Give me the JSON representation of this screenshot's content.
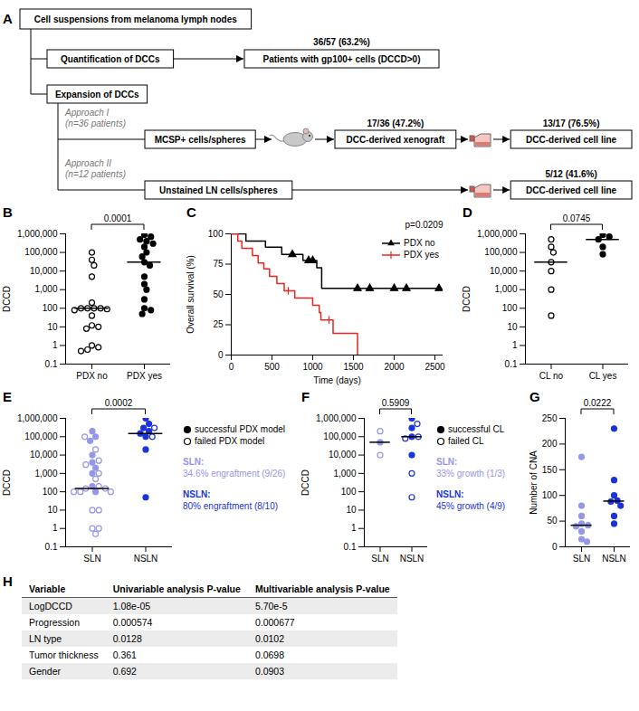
{
  "diagram": {
    "panel": "A",
    "root": "Cell suspensions from melanoma lymph nodes",
    "quantification": {
      "label": "Quantification of DCCs",
      "result": "Patients with gp100+ cells (DCCD>0)",
      "rate": "36/57 (63.2%)"
    },
    "expansion": "Expansion of DCCs",
    "approaches": [
      {
        "name": "Approach I",
        "n": "(n=36 patients)",
        "start": "MCSP+ cells/spheres",
        "steps": [
          {
            "label": "DCC-derived xenograft",
            "rate": "17/36 (47.2%)"
          },
          {
            "label": "DCC-derived cell line",
            "rate": "13/17 (76.5%)"
          }
        ]
      },
      {
        "name": "Approach II",
        "n": "(n=12 patients)",
        "start": "Unstained LN cells/spheres",
        "steps": [
          {
            "label": "DCC-derived cell line",
            "rate": "5/12 (41.6%)"
          }
        ]
      }
    ]
  },
  "chart_data": [
    {
      "panel": "B",
      "type": "scatter",
      "ylabel": "DCCD",
      "log": "y",
      "categories": [
        "PDX no",
        "PDX yes"
      ],
      "colors": [
        "#000000",
        "#000000"
      ],
      "ylim": [
        0.1,
        1000000
      ],
      "yticks": [
        0.1,
        1,
        10,
        100,
        {
          "value": 1000,
          "label": "1,000"
        },
        {
          "value": 10000,
          "label": "10,000"
        },
        {
          "value": 100000,
          "label": "100,000"
        },
        {
          "value": 1000000,
          "label": "1,000,000"
        }
      ],
      "series": [
        {
          "marker": "open",
          "values": [
            [
              100000,
              40000,
              20000,
              5000,
              200,
              100,
              100,
              100,
              100,
              90,
              80,
              40,
              12,
              10,
              8,
              1,
              0.8,
              0.6,
              0.5
            ],
            []
          ]
        },
        {
          "marker": "filled",
          "values": [
            [],
            [
              900000,
              700000,
              500000,
              400000,
              300000,
              200000,
              100000,
              60000,
              30000,
              20000,
              5000,
              2000,
              1000,
              300,
              100,
              80,
              50
            ]
          ]
        }
      ],
      "medians": [
        100,
        30000
      ],
      "p_value": "0.0001"
    },
    {
      "panel": "C",
      "type": "step",
      "xlabel": "Time (days)",
      "ylabel": "Overall survival (%)",
      "xlim": [
        0,
        2600
      ],
      "xticks": [
        0,
        500,
        1000,
        1500,
        2000,
        2500
      ],
      "ylim": [
        0,
        100
      ],
      "yticks": [
        0,
        25,
        50,
        75,
        100
      ],
      "legend": "upper right",
      "series": [
        {
          "name": "PDX no",
          "color": "#000000",
          "marker": "triangle",
          "x": [
            0,
            180,
            420,
            620,
            880,
            1050,
            1110,
            2550
          ],
          "values": [
            100,
            94,
            89,
            83,
            78,
            72,
            55,
            55
          ],
          "censored": [
            750,
            950,
            1000,
            1550,
            1700,
            2000,
            2150,
            2550
          ]
        },
        {
          "name": "PDX yes",
          "color": "#e8261f",
          "marker": "tick",
          "x": [
            0,
            80,
            130,
            260,
            330,
            400,
            470,
            560,
            650,
            780,
            1000,
            1080,
            1100,
            1250,
            1550
          ],
          "values": [
            100,
            94,
            88,
            82,
            76,
            71,
            65,
            59,
            53,
            47,
            41,
            35,
            29,
            18,
            0
          ],
          "censored": [
            700,
            1200
          ]
        }
      ],
      "p_value": "p=0.0209"
    },
    {
      "panel": "D",
      "type": "scatter",
      "ylabel": "DCCD",
      "log": "y",
      "categories": [
        "CL no",
        "CL yes"
      ],
      "colors": [
        "#000000",
        "#000000"
      ],
      "ylim": [
        0.1,
        1000000
      ],
      "yticks": [
        0.1,
        1,
        10,
        100,
        {
          "value": 1000,
          "label": "1,000"
        },
        {
          "value": 10000,
          "label": "10,000"
        },
        {
          "value": 100000,
          "label": "100,000"
        },
        {
          "value": 1000000,
          "label": "1,000,000"
        }
      ],
      "series": [
        {
          "marker": "open",
          "values": [
            [
              500000,
              200000,
              100000,
              30000,
              10000,
              1000,
              40
            ],
            []
          ]
        },
        {
          "marker": "filled",
          "values": [
            [],
            [
              900000,
              700000,
              500000,
              200000,
              80000
            ]
          ]
        }
      ],
      "medians": [
        30000,
        500000
      ],
      "p_value": "0.0745"
    },
    {
      "panel": "E",
      "type": "scatter",
      "ylabel": "DCCD",
      "log": "y",
      "legend": "right",
      "categories": [
        "SLN",
        "NSLN"
      ],
      "colors": [
        "#9597e8",
        "#1a33d9"
      ],
      "ylim": [
        0.1,
        1000000
      ],
      "yticks": [
        0.1,
        1,
        10,
        100,
        {
          "value": 1000,
          "label": "1,000"
        },
        {
          "value": 10000,
          "label": "10,000"
        },
        {
          "value": 100000,
          "label": "100,000"
        },
        {
          "value": 1000000,
          "label": "1,000,000"
        }
      ],
      "series": [
        {
          "name": "successful PDX model",
          "marker": "filled",
          "values": [
            [
              200000,
              100000,
              60000,
              10000,
              4000,
              2000,
              1000,
              200,
              100
            ],
            [
              1000000,
              500000,
              300000,
              200000,
              150000,
              100000,
              20000,
              50
            ]
          ]
        },
        {
          "name": "failed PDX model",
          "marker": "open",
          "values": [
            [
              100000,
              20000,
              5000,
              3000,
              1000,
              500,
              200,
              150,
              150,
              100,
              100,
              100,
              10,
              10,
              1,
              1,
              0.5
            ],
            [
              300000,
              100000
            ]
          ]
        }
      ],
      "medians": [
        150,
        150000
      ],
      "p_value": "0.0002",
      "annotations": [
        {
          "label": "SLN:",
          "text": "34.6% engraftment (9/26)"
        },
        {
          "label": "NSLN:",
          "text": "80% engraftment (8/10)"
        }
      ]
    },
    {
      "panel": "F",
      "type": "scatter",
      "ylabel": "DCCD",
      "log": "y",
      "legend": "right",
      "categories": [
        "SLN",
        "NSLN"
      ],
      "colors": [
        "#9597e8",
        "#1a33d9"
      ],
      "ylim": [
        0.1,
        1000000
      ],
      "yticks": [
        0.1,
        1,
        10,
        100,
        {
          "value": 1000,
          "label": "1,000"
        },
        {
          "value": 10000,
          "label": "10,000"
        },
        {
          "value": 100000,
          "label": "100,000"
        },
        {
          "value": 1000000,
          "label": "1,000,000"
        }
      ],
      "series": [
        {
          "name": "successful CL",
          "marker": "filled",
          "values": [
            [
              50000
            ],
            [
              1000000,
              300000,
              100000,
              10000
            ]
          ]
        },
        {
          "name": "failed CL",
          "marker": "open",
          "values": [
            [
              200000,
              10000
            ],
            [
              500000,
              100000,
              80000,
              1000,
              50
            ]
          ]
        }
      ],
      "medians": [
        50000,
        100000
      ],
      "p_value": "0.5909",
      "annotations": [
        {
          "label": "SLN:",
          "text": "33% growth (1/3)"
        },
        {
          "label": "NSLN:",
          "text": "45% growth (4/9)"
        }
      ]
    },
    {
      "panel": "G",
      "type": "scatter",
      "ylabel": "Number of CNA",
      "categories": [
        "SLN",
        "NSLN"
      ],
      "colors": [
        "#9597e8",
        "#1a33d9"
      ],
      "ylim": [
        0,
        250
      ],
      "yticks": [
        0,
        50,
        100,
        150,
        200,
        250
      ],
      "series": [
        {
          "marker": "filled",
          "values": [
            [
              175,
              80,
              60,
              45,
              42,
              40,
              30,
              15,
              10
            ],
            [
              230,
              130,
              100,
              90,
              88,
              80,
              60,
              45
            ]
          ]
        }
      ],
      "medians": [
        42,
        89
      ],
      "p_value": "0.0222"
    }
  ],
  "table": {
    "panel": "H",
    "header": [
      "Variable",
      "Univariable analysis P-value",
      "Multivariable analysis P-value"
    ],
    "rows": [
      [
        "LogDCCD",
        "1.08e-05",
        "5.70e-5"
      ],
      [
        "Progression",
        "0.000574",
        "0.000677"
      ],
      [
        "LN type",
        "0.0128",
        "0.0102"
      ],
      [
        "Tumor thickness",
        "0.361",
        "0.0698"
      ],
      [
        "Gender",
        "0.692",
        "0.0903"
      ]
    ]
  }
}
